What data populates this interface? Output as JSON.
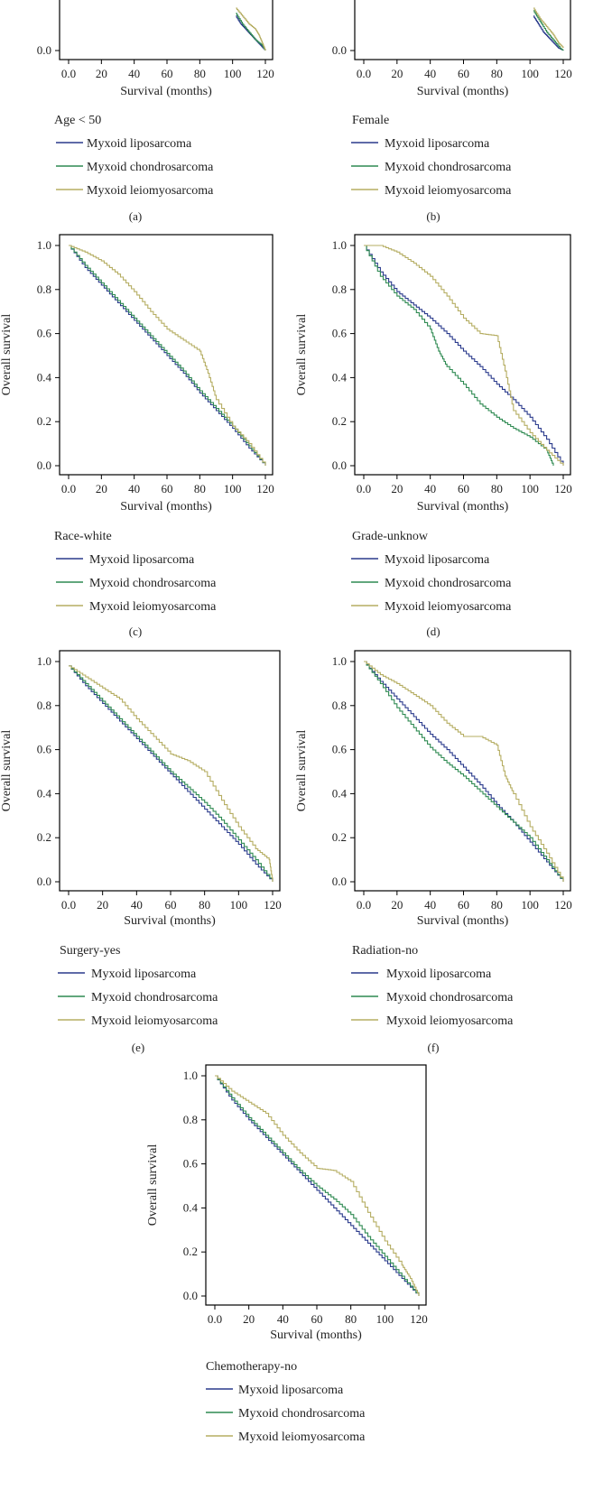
{
  "colors": {
    "liposarcoma": "#2a3a8c",
    "chondrosarcoma": "#2f8a52",
    "leiomyosarcoma": "#b5ad62",
    "axis": "#000000",
    "text": "#222222"
  },
  "icons": {
    "legend_line": "legend-line-icon"
  },
  "chart_data": [
    {
      "id": "a",
      "type": "line",
      "panel_label": "(a)",
      "legend_title": "Age < 50",
      "xlabel": "Survival (months)",
      "ylabel": "",
      "xlim": [
        0,
        120
      ],
      "ylim": [
        0,
        1
      ],
      "xticks": [
        "0.0",
        "20",
        "40",
        "60",
        "80",
        "100",
        "120"
      ],
      "yticks": [
        "0.0"
      ],
      "series": [
        {
          "name": "Myxoid liposarcoma",
          "x": [
            102,
            105,
            108,
            111,
            114,
            117,
            120
          ],
          "y": [
            0.13,
            0.1,
            0.08,
            0.06,
            0.04,
            0.02,
            0.0
          ]
        },
        {
          "name": "Myxoid chondrosarcoma",
          "x": [
            102,
            106,
            110,
            114,
            118,
            120
          ],
          "y": [
            0.14,
            0.1,
            0.07,
            0.04,
            0.02,
            0.0
          ]
        },
        {
          "name": "Myxoid leiomyosarcoma",
          "x": [
            102,
            106,
            110,
            114,
            116,
            118,
            120
          ],
          "y": [
            0.16,
            0.13,
            0.1,
            0.08,
            0.06,
            0.03,
            0.0
          ]
        }
      ]
    },
    {
      "id": "b",
      "type": "line",
      "panel_label": "(b)",
      "legend_title": "Female",
      "xlabel": "Survival (months)",
      "ylabel": "",
      "xlim": [
        0,
        120
      ],
      "ylim": [
        0,
        1
      ],
      "xticks": [
        "0.0",
        "20",
        "40",
        "60",
        "80",
        "100",
        "120"
      ],
      "yticks": [
        "0.0"
      ],
      "series": [
        {
          "name": "Myxoid liposarcoma",
          "x": [
            102,
            105,
            108,
            111,
            114,
            117,
            120
          ],
          "y": [
            0.13,
            0.1,
            0.07,
            0.05,
            0.03,
            0.01,
            0.0
          ]
        },
        {
          "name": "Myxoid chondrosarcoma",
          "x": [
            102,
            106,
            110,
            114,
            118,
            120
          ],
          "y": [
            0.15,
            0.11,
            0.07,
            0.04,
            0.01,
            0.0
          ]
        },
        {
          "name": "Myxoid leiomyosarcoma",
          "x": [
            102,
            106,
            110,
            114,
            117,
            120
          ],
          "y": [
            0.16,
            0.12,
            0.09,
            0.06,
            0.03,
            0.01
          ]
        }
      ]
    },
    {
      "id": "c",
      "type": "line",
      "panel_label": "(c)",
      "legend_title": "Race-white",
      "xlabel": "Survival (months)",
      "ylabel": "Overall survival",
      "xlim": [
        0,
        120
      ],
      "ylim": [
        0,
        1
      ],
      "xticks": [
        "0.0",
        "20",
        "40",
        "60",
        "80",
        "100",
        "120"
      ],
      "yticks": [
        "0.0",
        "0.2",
        "0.4",
        "0.6",
        "0.8",
        "1.0"
      ],
      "series": [
        {
          "name": "Myxoid liposarcoma",
          "x": [
            0,
            10,
            20,
            30,
            40,
            50,
            60,
            70,
            80,
            90,
            100,
            110,
            120
          ],
          "y": [
            1.0,
            0.9,
            0.82,
            0.74,
            0.66,
            0.58,
            0.5,
            0.42,
            0.33,
            0.25,
            0.17,
            0.08,
            0.0
          ]
        },
        {
          "name": "Myxoid chondrosarcoma",
          "x": [
            0,
            10,
            20,
            30,
            40,
            50,
            60,
            70,
            80,
            90,
            100,
            110,
            120
          ],
          "y": [
            1.0,
            0.91,
            0.83,
            0.75,
            0.67,
            0.59,
            0.51,
            0.43,
            0.34,
            0.26,
            0.18,
            0.09,
            0.0
          ]
        },
        {
          "name": "Myxoid leiomyosarcoma",
          "x": [
            0,
            10,
            20,
            30,
            40,
            50,
            60,
            70,
            80,
            85,
            90,
            100,
            110,
            120
          ],
          "y": [
            1.0,
            0.97,
            0.93,
            0.87,
            0.79,
            0.7,
            0.62,
            0.57,
            0.52,
            0.42,
            0.3,
            0.18,
            0.1,
            0.0
          ]
        }
      ]
    },
    {
      "id": "d",
      "type": "line",
      "panel_label": "(d)",
      "legend_title": "Grade-unknow",
      "xlabel": "Survival (months)",
      "ylabel": "Overall survival",
      "xlim": [
        0,
        120
      ],
      "ylim": [
        0,
        1
      ],
      "xticks": [
        "0.0",
        "20",
        "40",
        "60",
        "80",
        "100",
        "120"
      ],
      "yticks": [
        "0.0",
        "0.2",
        "0.4",
        "0.6",
        "0.8",
        "1.0"
      ],
      "series": [
        {
          "name": "Myxoid liposarcoma",
          "x": [
            0,
            10,
            20,
            30,
            40,
            50,
            60,
            70,
            80,
            90,
            100,
            110,
            120
          ],
          "y": [
            1.0,
            0.88,
            0.79,
            0.73,
            0.67,
            0.6,
            0.52,
            0.45,
            0.37,
            0.3,
            0.22,
            0.12,
            0.0
          ]
        },
        {
          "name": "Myxoid chondrosarcoma",
          "x": [
            0,
            10,
            20,
            30,
            40,
            45,
            50,
            60,
            70,
            80,
            90,
            100,
            110,
            114
          ],
          "y": [
            1.0,
            0.86,
            0.77,
            0.71,
            0.62,
            0.52,
            0.45,
            0.37,
            0.28,
            0.22,
            0.17,
            0.13,
            0.07,
            0.0
          ]
        },
        {
          "name": "Myxoid leiomyosarcoma",
          "x": [
            0,
            10,
            20,
            30,
            40,
            50,
            60,
            70,
            80,
            85,
            90,
            100,
            110,
            120
          ],
          "y": [
            1.0,
            1.0,
            0.97,
            0.92,
            0.86,
            0.77,
            0.67,
            0.6,
            0.59,
            0.43,
            0.25,
            0.15,
            0.07,
            0.0
          ]
        }
      ]
    },
    {
      "id": "e",
      "type": "line",
      "panel_label": "(e)",
      "legend_title": "Surgery-yes",
      "xlabel": "Survival (months)",
      "ylabel": "Overall survival",
      "xlim": [
        0,
        120
      ],
      "ylim": [
        0,
        1
      ],
      "xticks": [
        "0.0",
        "20",
        "40",
        "60",
        "80",
        "100",
        "120"
      ],
      "yticks": [
        "0.0",
        "0.2",
        "0.4",
        "0.6",
        "0.8",
        "1.0"
      ],
      "series": [
        {
          "name": "Myxoid liposarcoma",
          "x": [
            0,
            10,
            20,
            30,
            40,
            50,
            60,
            70,
            80,
            90,
            100,
            110,
            120
          ],
          "y": [
            0.98,
            0.89,
            0.81,
            0.73,
            0.65,
            0.57,
            0.49,
            0.41,
            0.33,
            0.25,
            0.17,
            0.08,
            0.0
          ]
        },
        {
          "name": "Myxoid chondrosarcoma",
          "x": [
            0,
            10,
            20,
            30,
            40,
            50,
            60,
            70,
            80,
            90,
            100,
            110,
            120
          ],
          "y": [
            0.98,
            0.9,
            0.82,
            0.74,
            0.66,
            0.58,
            0.5,
            0.43,
            0.36,
            0.28,
            0.19,
            0.1,
            0.0
          ]
        },
        {
          "name": "Myxoid leiomyosarcoma",
          "x": [
            0,
            10,
            20,
            30,
            40,
            50,
            60,
            70,
            80,
            90,
            100,
            110,
            118,
            120
          ],
          "y": [
            0.98,
            0.93,
            0.88,
            0.83,
            0.74,
            0.66,
            0.58,
            0.55,
            0.5,
            0.37,
            0.25,
            0.15,
            0.1,
            0.0
          ]
        }
      ]
    },
    {
      "id": "f",
      "type": "line",
      "panel_label": "(f)",
      "legend_title": "Radiation-no",
      "xlabel": "Survival (months)",
      "ylabel": "Overall survival",
      "xlim": [
        0,
        120
      ],
      "ylim": [
        0,
        1
      ],
      "xticks": [
        "0.0",
        "20",
        "40",
        "60",
        "80",
        "100",
        "120"
      ],
      "yticks": [
        "0.0",
        "0.2",
        "0.4",
        "0.6",
        "0.8",
        "1.0"
      ],
      "series": [
        {
          "name": "Myxoid liposarcoma",
          "x": [
            0,
            10,
            20,
            30,
            40,
            50,
            60,
            70,
            80,
            90,
            100,
            110,
            120
          ],
          "y": [
            1.0,
            0.91,
            0.83,
            0.75,
            0.67,
            0.6,
            0.52,
            0.44,
            0.35,
            0.27,
            0.18,
            0.09,
            0.0
          ]
        },
        {
          "name": "Myxoid chondrosarcoma",
          "x": [
            0,
            10,
            20,
            30,
            40,
            50,
            60,
            70,
            80,
            90,
            100,
            110,
            120
          ],
          "y": [
            1.0,
            0.9,
            0.79,
            0.7,
            0.61,
            0.54,
            0.48,
            0.41,
            0.34,
            0.27,
            0.2,
            0.1,
            0.0
          ]
        },
        {
          "name": "Myxoid leiomyosarcoma",
          "x": [
            0,
            10,
            20,
            30,
            40,
            50,
            60,
            70,
            80,
            85,
            90,
            100,
            110,
            120
          ],
          "y": [
            1.0,
            0.94,
            0.9,
            0.85,
            0.8,
            0.72,
            0.66,
            0.66,
            0.62,
            0.48,
            0.4,
            0.25,
            0.13,
            0.0
          ]
        }
      ]
    },
    {
      "id": "g",
      "type": "line",
      "panel_label": "",
      "legend_title": "Chemotherapy-no",
      "xlabel": "Survival (months)",
      "ylabel": "Overall survival",
      "xlim": [
        0,
        120
      ],
      "ylim": [
        0,
        1
      ],
      "xticks": [
        "0.0",
        "20",
        "40",
        "60",
        "80",
        "100",
        "120"
      ],
      "yticks": [
        "0.0",
        "0.2",
        "0.4",
        "0.6",
        "0.8",
        "1.0"
      ],
      "series": [
        {
          "name": "Myxoid liposarcoma",
          "x": [
            0,
            10,
            20,
            30,
            40,
            50,
            60,
            70,
            80,
            90,
            100,
            110,
            120
          ],
          "y": [
            1.0,
            0.89,
            0.8,
            0.72,
            0.64,
            0.56,
            0.48,
            0.4,
            0.32,
            0.24,
            0.16,
            0.08,
            0.0
          ]
        },
        {
          "name": "Myxoid chondrosarcoma",
          "x": [
            0,
            10,
            20,
            30,
            40,
            50,
            60,
            70,
            80,
            90,
            100,
            110,
            120
          ],
          "y": [
            1.0,
            0.9,
            0.81,
            0.73,
            0.65,
            0.57,
            0.5,
            0.44,
            0.37,
            0.27,
            0.18,
            0.09,
            0.0
          ]
        },
        {
          "name": "Myxoid leiomyosarcoma",
          "x": [
            0,
            10,
            20,
            30,
            40,
            50,
            60,
            70,
            80,
            90,
            100,
            110,
            115,
            120
          ],
          "y": [
            1.0,
            0.93,
            0.88,
            0.83,
            0.73,
            0.65,
            0.58,
            0.57,
            0.52,
            0.38,
            0.25,
            0.14,
            0.08,
            0.0
          ]
        }
      ]
    }
  ]
}
